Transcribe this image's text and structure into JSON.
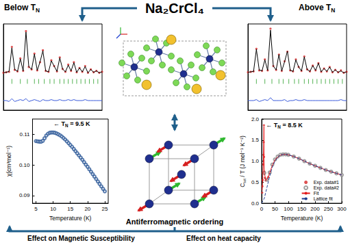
{
  "header": {
    "title": "Na₂CrCl₄",
    "left": {
      "text": "Below T",
      "sub": "N"
    },
    "right": {
      "text": "Above T",
      "sub": "N"
    }
  },
  "diagrams": {
    "center_caption": "Antiferromagnetic ordering",
    "bottom_left": "Effect on Magnetic Susceptibility",
    "bottom_right": "Effect on heat capacity"
  },
  "chart_data": [
    {
      "type": "line",
      "tick_labels": false,
      "grid": false,
      "xlim": [
        10,
        80
      ],
      "ylim": [
        -70,
        110
      ],
      "y2lim": [
        -10,
        80
      ],
      "x": [
        10,
        12,
        14,
        16,
        18,
        20,
        22,
        24,
        26,
        28,
        30,
        32,
        34,
        36,
        38,
        40,
        42,
        44,
        46,
        48,
        50,
        52,
        54,
        56,
        58,
        60,
        62,
        64,
        66,
        68,
        70,
        72,
        74,
        76,
        78,
        80
      ],
      "series": [
        {
          "type": "scatter",
          "color": "#d62728",
          "marker": "circle",
          "values": [
            8,
            9,
            10,
            62,
            14,
            11,
            38,
            12,
            95,
            20,
            15,
            48,
            13,
            30,
            55,
            12,
            10,
            34,
            22,
            11,
            40,
            16,
            10,
            25,
            12,
            30,
            9,
            18,
            10,
            22,
            8,
            15,
            9,
            12,
            8,
            10
          ]
        },
        {
          "type": "line",
          "color": "#000000",
          "line_style": "solid",
          "values": [
            8,
            9,
            11,
            60,
            15,
            11,
            37,
            12,
            93,
            21,
            15,
            47,
            13,
            31,
            54,
            12,
            10,
            33,
            22,
            11,
            39,
            16,
            10,
            24,
            12,
            29,
            9,
            18,
            10,
            21,
            8,
            15,
            9,
            12,
            8,
            10
          ]
        },
        {
          "type": "line",
          "color": "#3b5bdb",
          "line_style": "solid",
          "axis": "y2",
          "values": [
            0,
            0,
            -1,
            2,
            -1,
            0,
            1,
            0,
            2,
            -1,
            0,
            1,
            0,
            -1,
            1,
            0,
            0,
            1,
            0,
            0,
            1,
            0,
            0,
            1,
            0,
            1,
            0,
            0,
            0,
            1,
            0,
            0,
            0,
            0,
            0,
            0
          ]
        },
        {
          "type": "scatter",
          "color": "#2ca02c",
          "marker": "vbar",
          "axis": "y2",
          "x": [
            16,
            22,
            27,
            32,
            35,
            39,
            43,
            46,
            50,
            53,
            56,
            59,
            62,
            65,
            68,
            71,
            74,
            77
          ],
          "values": [
            20,
            20,
            20,
            20,
            20,
            20,
            20,
            20,
            20,
            20,
            20,
            20,
            20,
            20,
            20,
            20,
            20,
            20
          ]
        }
      ]
    },
    {
      "type": "line",
      "tick_labels": false,
      "grid": false,
      "xlim": [
        10,
        80
      ],
      "ylim": [
        -70,
        110
      ],
      "y2lim": [
        -10,
        80
      ],
      "x": [
        10,
        12,
        14,
        16,
        18,
        20,
        22,
        24,
        26,
        28,
        30,
        32,
        34,
        36,
        38,
        40,
        42,
        44,
        46,
        48,
        50,
        52,
        54,
        56,
        58,
        60,
        62,
        64,
        66,
        68,
        70,
        72,
        74,
        76,
        78,
        80
      ],
      "series": [
        {
          "type": "scatter",
          "color": "#d62728",
          "marker": "circle",
          "values": [
            9,
            10,
            11,
            58,
            13,
            12,
            36,
            13,
            100,
            22,
            14,
            46,
            12,
            32,
            52,
            13,
            11,
            36,
            20,
            12,
            42,
            15,
            11,
            23,
            13,
            28,
            10,
            17,
            11,
            20,
            9,
            14,
            9,
            13,
            8,
            10
          ]
        },
        {
          "type": "line",
          "color": "#000000",
          "line_style": "solid",
          "values": [
            9,
            10,
            11,
            57,
            14,
            12,
            35,
            13,
            97,
            22,
            14,
            46,
            12,
            31,
            53,
            13,
            11,
            35,
            20,
            12,
            41,
            15,
            11,
            23,
            13,
            28,
            10,
            17,
            11,
            20,
            9,
            14,
            9,
            12,
            8,
            10
          ]
        },
        {
          "type": "line",
          "color": "#3b5bdb",
          "line_style": "solid",
          "axis": "y2",
          "values": [
            0,
            0,
            0,
            1,
            -1,
            0,
            1,
            0,
            3,
            0,
            0,
            0,
            0,
            1,
            -1,
            0,
            0,
            1,
            0,
            0,
            1,
            0,
            0,
            0,
            0,
            0,
            0,
            0,
            0,
            0,
            0,
            0,
            0,
            1,
            0,
            0
          ]
        },
        {
          "type": "scatter",
          "color": "#2ca02c",
          "marker": "vbar",
          "axis": "y2",
          "x": [
            16,
            22,
            27,
            32,
            35,
            39,
            43,
            46,
            50,
            53,
            56,
            59,
            62,
            65,
            68,
            71,
            74,
            77
          ],
          "values": [
            20,
            20,
            20,
            20,
            20,
            20,
            20,
            20,
            20,
            20,
            20,
            20,
            20,
            20,
            20,
            20,
            20,
            20
          ]
        }
      ]
    },
    {
      "type": "scatter",
      "grid": false,
      "color": "#2e5a99",
      "marker": "open_circle",
      "x_label": "Temperature (K)",
      "y_label": "χ(cm³mol⁻¹)",
      "xlim": [
        4,
        26
      ],
      "xticks": [
        5,
        10,
        15,
        20,
        25
      ],
      "ylim": [
        0.0875,
        0.115
      ],
      "yticks": [
        0.09,
        {
          "value": 0.1,
          "label": "0.10"
        },
        0.11
      ],
      "x": [
        5,
        5.5,
        6,
        6.5,
        7,
        7.5,
        8,
        8.5,
        9,
        9.5,
        10,
        10.5,
        11,
        11.5,
        12,
        12.5,
        13,
        13.5,
        14,
        14.5,
        15,
        15.5,
        16,
        16.5,
        17,
        17.5,
        18,
        18.5,
        19,
        19.5,
        20,
        20.5,
        21,
        21.5,
        22,
        22.5,
        23,
        23.5,
        24,
        24.5,
        25
      ],
      "values": [
        0.1078,
        0.1077,
        0.1076,
        0.1076,
        0.1079,
        0.1087,
        0.1096,
        0.1102,
        0.1105,
        0.1106,
        0.1106,
        0.1105,
        0.1103,
        0.11,
        0.1097,
        0.1093,
        0.1088,
        0.1083,
        0.1077,
        0.1071,
        0.1065,
        0.1059,
        0.1052,
        0.1045,
        0.1038,
        0.1031,
        0.1024,
        0.1017,
        0.1009,
        0.1001,
        0.0994,
        0.0986,
        0.0978,
        0.097,
        0.0962,
        0.0954,
        0.0946,
        0.0938,
        0.093,
        0.0922,
        0.0914
      ],
      "annotation": {
        "text": "← T",
        "sub": "N",
        "after": " = 9.5 K",
        "x": 9.5,
        "y": 0.1135
      }
    },
    {
      "type": "scatter",
      "grid": false,
      "legend": "lower right",
      "x_label": "Temperature (K)",
      "y_label": {
        "text": "C",
        "sub": "tot",
        "after": " / T (J mol⁻¹ K⁻²)"
      },
      "xlim": [
        0,
        300
      ],
      "xticks": [
        0,
        50,
        100,
        150,
        200,
        250,
        300
      ],
      "ylim": [
        0,
        2
      ],
      "yticks": [
        {
          "value": 0,
          "label": "0.0"
        },
        0.5,
        {
          "value": 1,
          "label": "1.0"
        },
        1.5,
        {
          "value": 2,
          "label": "2.0"
        }
      ],
      "series": [
        {
          "name": "Exp. data#1",
          "type": "scatter",
          "color": "#d62728",
          "marker": "circle",
          "x": [
            2,
            3,
            4,
            5,
            6,
            7,
            8,
            8.5,
            9,
            10,
            12,
            15,
            20,
            25,
            30
          ],
          "values": [
            0.25,
            0.4,
            0.55,
            0.72,
            0.92,
            1.15,
            1.45,
            1.85,
            1.1,
            0.75,
            0.6,
            0.54,
            0.55,
            0.62,
            0.72
          ]
        },
        {
          "name": "Exp. data#2",
          "type": "scatter",
          "color": "#888888",
          "marker": "open_circle",
          "x": [
            10,
            20,
            30,
            40,
            50,
            60,
            70,
            80,
            90,
            100,
            120,
            140,
            160,
            180,
            200,
            220,
            240,
            260,
            280,
            300
          ],
          "values": [
            0.72,
            0.56,
            0.73,
            0.92,
            1.04,
            1.11,
            1.15,
            1.16,
            1.16,
            1.15,
            1.11,
            1.06,
            1.0,
            0.94,
            0.89,
            0.84,
            0.79,
            0.75,
            0.71,
            0.67
          ]
        },
        {
          "name": "Fit",
          "type": "line",
          "color": "#e31a1c",
          "line_style": "solid",
          "x": [
            2,
            4,
            6,
            8,
            8.5,
            9,
            10,
            15,
            20,
            30,
            40,
            50,
            60,
            70,
            80,
            90,
            100,
            120,
            140,
            160,
            180,
            200,
            220,
            240,
            260,
            280,
            300
          ],
          "values": [
            0.3,
            0.56,
            0.93,
            1.5,
            1.82,
            1.05,
            0.74,
            0.55,
            0.56,
            0.72,
            0.9,
            1.03,
            1.1,
            1.14,
            1.16,
            1.16,
            1.15,
            1.11,
            1.06,
            1.0,
            0.94,
            0.89,
            0.84,
            0.79,
            0.75,
            0.71,
            0.67
          ]
        },
        {
          "name": "Lattice fit",
          "type": "line",
          "color": "#1f3b8f",
          "line_style": "dashed",
          "x": [
            0,
            10,
            20,
            30,
            40,
            50,
            60,
            70,
            80,
            90,
            100,
            120,
            140,
            160,
            180,
            200,
            220,
            240,
            260,
            280,
            300
          ],
          "values": [
            0,
            0.12,
            0.38,
            0.64,
            0.86,
            1.0,
            1.09,
            1.14,
            1.16,
            1.16,
            1.15,
            1.11,
            1.06,
            1.0,
            0.94,
            0.89,
            0.84,
            0.79,
            0.75,
            0.71,
            0.67
          ]
        }
      ],
      "annotation": {
        "text": "← T",
        "sub": "N",
        "after": " = 8.5 K",
        "x": 8.5,
        "y": 1.85
      }
    }
  ]
}
